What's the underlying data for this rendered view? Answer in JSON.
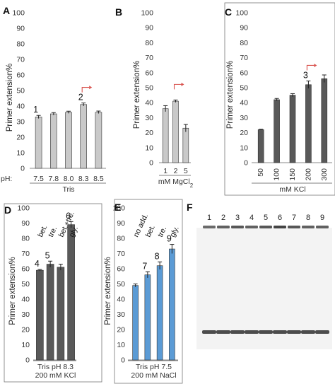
{
  "panels": {
    "A": "A",
    "B": "B",
    "C": "C",
    "D": "D",
    "E": "E",
    "F": "F"
  },
  "colors": {
    "light_bar": "#c9c9c9",
    "dark_bar": "#595959",
    "blue_bar": "#5b9bd5",
    "arrow": "#d9534f",
    "gel_bg": "#f4f4f4",
    "band": "#3a3a3a"
  },
  "chart_data": [
    {
      "panel": "A",
      "type": "bar",
      "ylabel": "Primer extension%",
      "ylim": [
        0,
        100
      ],
      "yticks": [
        0,
        10,
        20,
        30,
        40,
        50,
        60,
        70,
        80,
        90,
        100
      ],
      "x_prefix": "pH:",
      "categories": [
        "7.5",
        "7.8",
        "8.0",
        "8.3",
        "8.5"
      ],
      "values": [
        33,
        35,
        36,
        41,
        36
      ],
      "errors": [
        1.0,
        0.8,
        0.7,
        1.0,
        0.8
      ],
      "group_label": "Tris",
      "bar_labels": [
        {
          "index": 0,
          "text": "1"
        },
        {
          "index": 3,
          "text": "2"
        }
      ],
      "arrow_at_index": 3
    },
    {
      "panel": "B",
      "type": "bar",
      "ylabel": "Primer extension%",
      "ylim": [
        0,
        100
      ],
      "yticks": [
        0,
        10,
        20,
        30,
        40,
        50,
        60,
        70,
        80,
        90,
        100
      ],
      "categories": [
        "1",
        "2",
        "5"
      ],
      "values": [
        36,
        41,
        23
      ],
      "errors": [
        2.0,
        0.8,
        2.5
      ],
      "group_label": "mM MgCl",
      "group_label_sub": "2",
      "arrow_at_index": 1
    },
    {
      "panel": "C",
      "type": "bar",
      "ylabel": "Primer extension%",
      "ylim": [
        0,
        100
      ],
      "yticks": [
        0,
        10,
        20,
        30,
        40,
        50,
        60,
        70,
        80,
        90,
        100
      ],
      "categories": [
        "50",
        "100",
        "150",
        "200",
        "300"
      ],
      "values": [
        22,
        42,
        45,
        52,
        56
      ],
      "errors": [
        0.3,
        0.8,
        1.0,
        2.5,
        2.5
      ],
      "group_label": "mM KCl",
      "bar_labels": [
        {
          "index": 3,
          "text": "3"
        }
      ],
      "arrow_at_index": 3
    },
    {
      "panel": "D",
      "type": "bar",
      "ylabel": "Primer extension%",
      "ylim": [
        0,
        100
      ],
      "yticks": [
        0,
        10,
        20,
        30,
        40,
        50,
        60,
        70,
        80,
        90,
        100
      ],
      "categories": [
        "bet.",
        "tre.",
        "bet.+tre.",
        "gly."
      ],
      "values": [
        59,
        63,
        61,
        89
      ],
      "errors": [
        0.5,
        2.0,
        2.0,
        2.0
      ],
      "group_label": "Tris pH 8.3",
      "group_label_2": "200 mM KCl",
      "bar_labels": [
        {
          "index": 0,
          "text": "4"
        },
        {
          "index": 1,
          "text": "5"
        },
        {
          "index": 3,
          "text": "6"
        }
      ]
    },
    {
      "panel": "E",
      "type": "bar",
      "ylabel": "Primer extension%",
      "ylim": [
        0,
        100
      ],
      "yticks": [
        0,
        10,
        20,
        30,
        40,
        50,
        60,
        70,
        80,
        90,
        100
      ],
      "categories": [
        "no add.",
        "bet.",
        "tre.",
        "gly."
      ],
      "values": [
        49,
        56,
        62,
        73
      ],
      "errors": [
        1.0,
        2.0,
        2.5,
        3.0
      ],
      "group_label": "Tris  pH 7.5",
      "group_label_2": "200 mM NaCl",
      "bar_labels": [
        {
          "index": 1,
          "text": "7"
        },
        {
          "index": 2,
          "text": "8"
        },
        {
          "index": 3,
          "text": "9"
        }
      ]
    }
  ],
  "gel": {
    "panel": "F",
    "lanes": [
      "1",
      "2",
      "3",
      "4",
      "5",
      "6",
      "7",
      "8",
      "9"
    ]
  }
}
